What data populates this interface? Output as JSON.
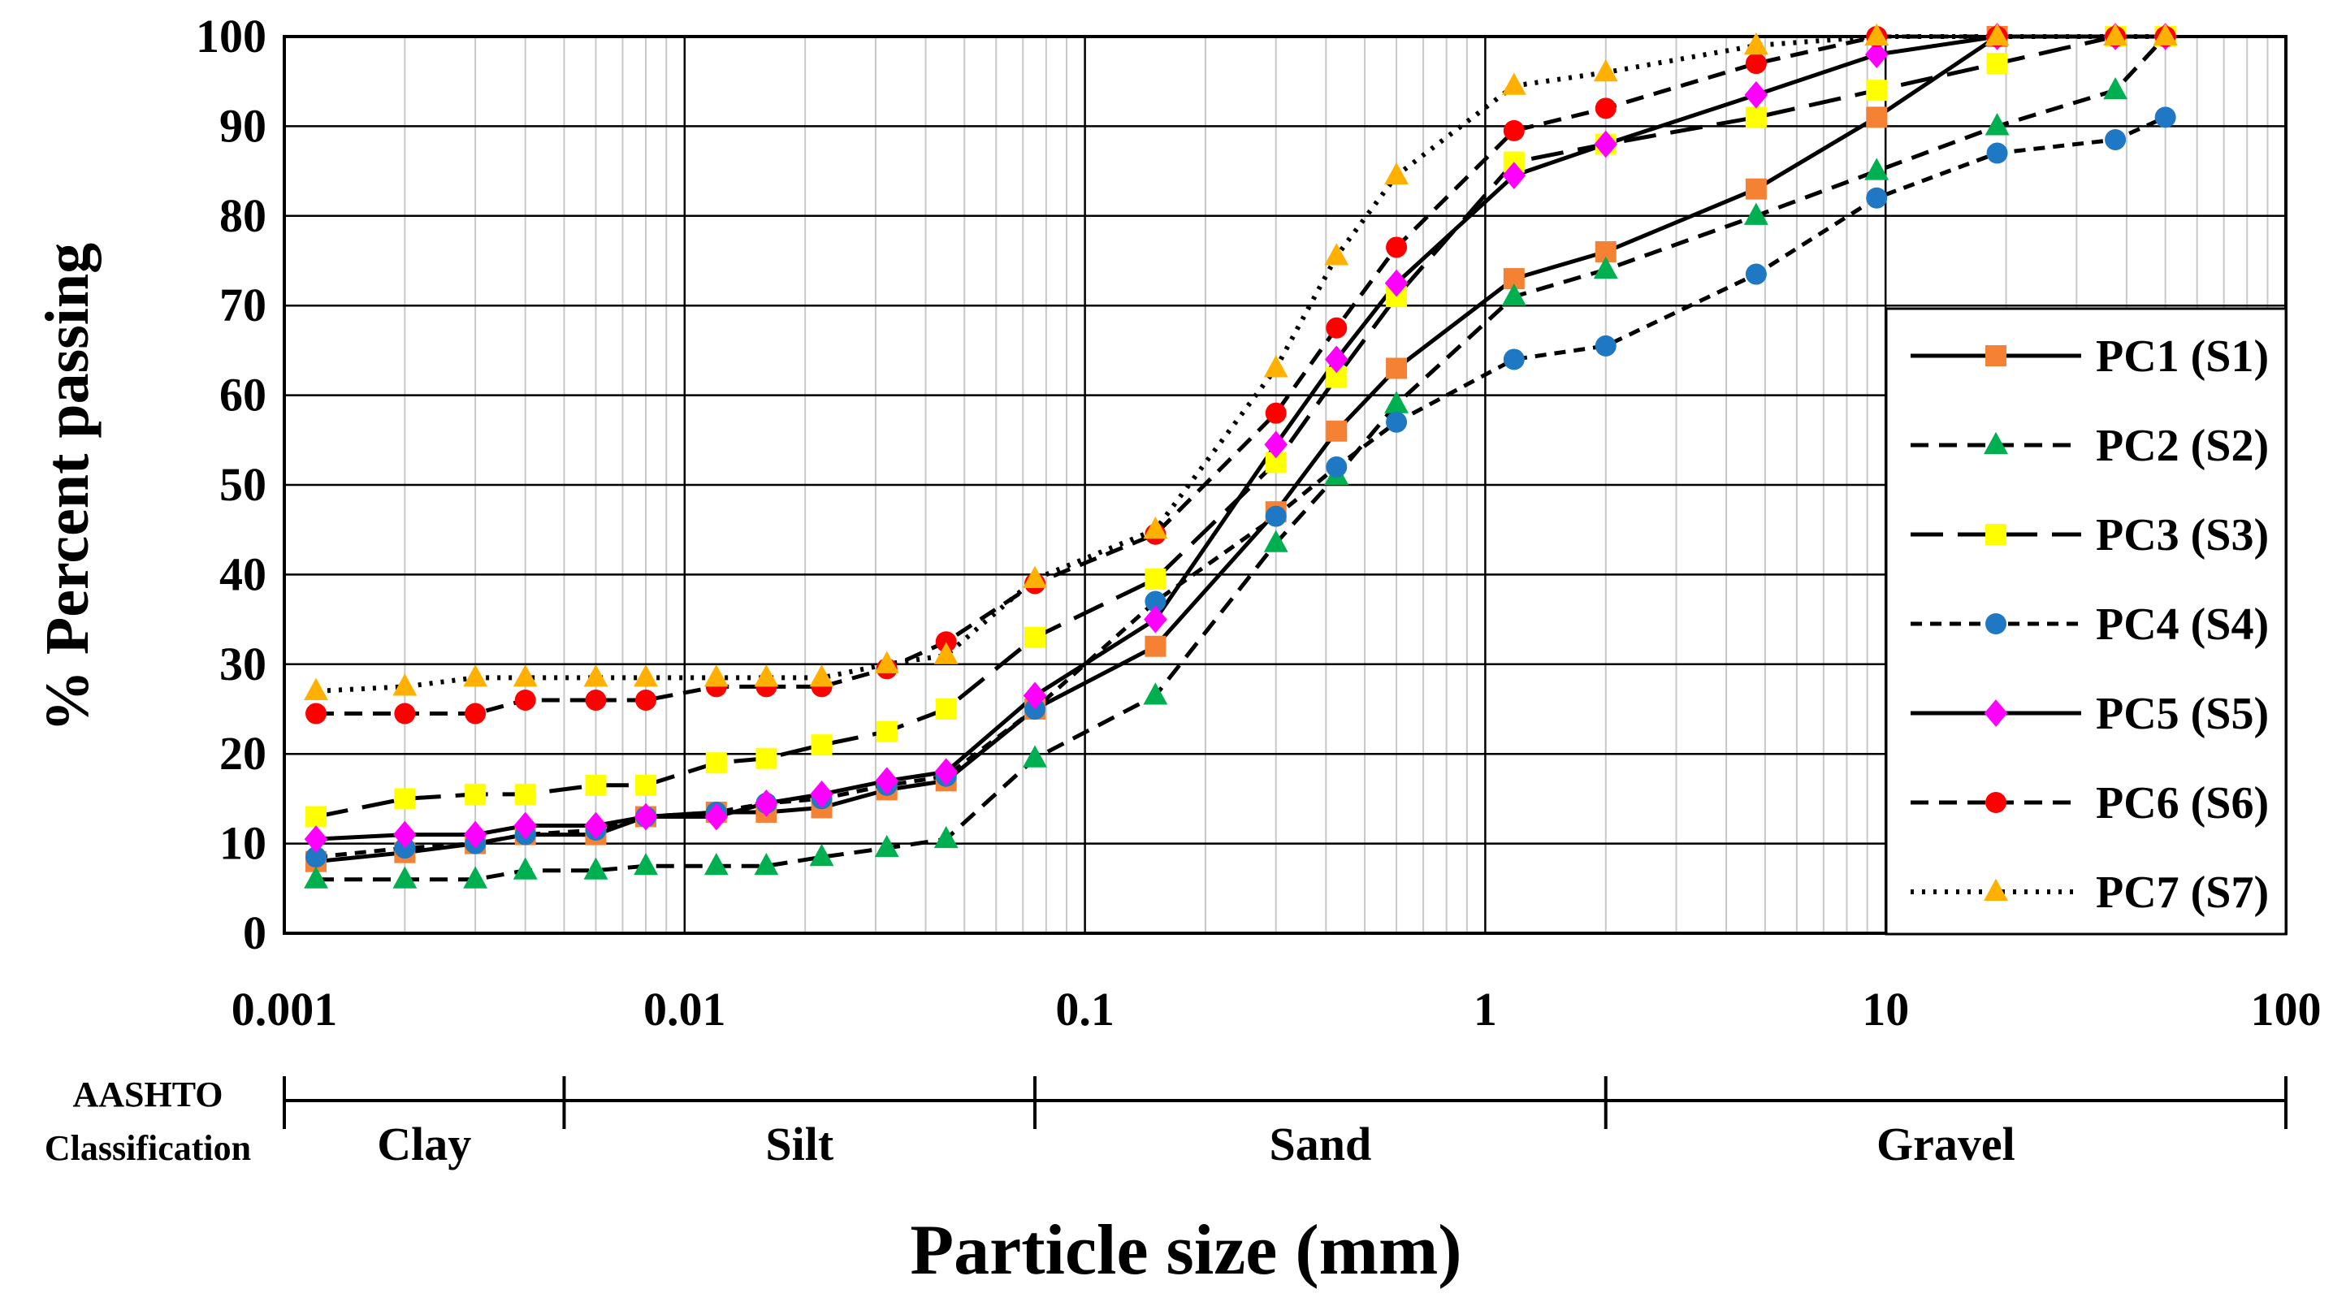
{
  "chart_data": {
    "type": "line",
    "title": "",
    "xlabel": "Particle size (mm)",
    "ylabel": "% Percent passing",
    "x_scale": "log",
    "xlim": [
      0.001,
      100
    ],
    "ylim": [
      0,
      100
    ],
    "x_ticks": [
      "0.001",
      "0.01",
      "0.1",
      "1",
      "10",
      "100"
    ],
    "y_ticks": [
      "0",
      "10",
      "20",
      "30",
      "40",
      "50",
      "60",
      "70",
      "80",
      "90",
      "100"
    ],
    "grid": true,
    "legend_position": "right",
    "series": [
      {
        "name": "PC1 (S1)",
        "marker": "square",
        "color": "#F58234",
        "line": "solid",
        "x": [
          0.0012,
          0.002,
          0.003,
          0.004,
          0.006,
          0.008,
          0.012,
          0.016,
          0.022,
          0.032,
          0.045,
          0.075,
          0.15,
          0.3,
          0.425,
          0.6,
          1.18,
          2,
          4.75,
          9.5,
          19,
          37.5,
          50
        ],
        "y": [
          8,
          9,
          10,
          11,
          11,
          13,
          13.5,
          13.5,
          14,
          16,
          17,
          25,
          32,
          47,
          56,
          63,
          73,
          76,
          83,
          91,
          100,
          100,
          100
        ]
      },
      {
        "name": "PC2 (S2)",
        "marker": "triangle",
        "color": "#00B050",
        "line": "dash",
        "x": [
          0.0012,
          0.002,
          0.003,
          0.004,
          0.006,
          0.008,
          0.012,
          0.016,
          0.022,
          0.032,
          0.045,
          0.075,
          0.15,
          0.3,
          0.425,
          0.6,
          1.18,
          2,
          4.75,
          9.5,
          19,
          37.5,
          50
        ],
        "y": [
          6,
          6,
          6,
          7,
          7,
          7.5,
          7.5,
          7.5,
          8.5,
          9.5,
          10.5,
          19.5,
          26.5,
          43.5,
          51,
          59,
          71,
          74,
          80,
          85,
          90,
          94,
          100
        ]
      },
      {
        "name": "PC3 (S3)",
        "marker": "square",
        "color": "#FFFF00",
        "line": "longdash",
        "x": [
          0.0012,
          0.002,
          0.003,
          0.004,
          0.006,
          0.008,
          0.012,
          0.016,
          0.022,
          0.032,
          0.045,
          0.075,
          0.15,
          0.3,
          0.425,
          0.6,
          1.18,
          2,
          4.75,
          9.5,
          19,
          37.5,
          50
        ],
        "y": [
          13,
          15,
          15.5,
          15.5,
          16.5,
          16.5,
          19,
          19.5,
          21,
          22.5,
          25,
          33,
          39.5,
          52.5,
          62,
          71,
          86,
          88,
          91,
          94,
          97,
          100,
          100
        ]
      },
      {
        "name": "PC4 (S4)",
        "marker": "circle",
        "color": "#1F78C4",
        "line": "shortdash",
        "x": [
          0.0012,
          0.002,
          0.003,
          0.004,
          0.006,
          0.008,
          0.012,
          0.016,
          0.022,
          0.032,
          0.045,
          0.075,
          0.15,
          0.3,
          0.425,
          0.6,
          1.18,
          2,
          4.75,
          9.5,
          19,
          37.5,
          50
        ],
        "y": [
          8.5,
          9.5,
          10,
          11,
          11.5,
          13,
          13.5,
          14.5,
          15,
          16.5,
          17.5,
          25,
          37,
          46.5,
          52,
          57,
          64,
          65.5,
          73.5,
          82,
          87,
          88.5,
          91
        ]
      },
      {
        "name": "PC5 (S5)",
        "marker": "diamond",
        "color": "#FF00FF",
        "line": "solid",
        "x": [
          0.0012,
          0.002,
          0.003,
          0.004,
          0.006,
          0.008,
          0.012,
          0.016,
          0.022,
          0.032,
          0.045,
          0.075,
          0.15,
          0.3,
          0.425,
          0.6,
          1.18,
          2,
          4.75,
          9.5,
          19,
          37.5,
          50
        ],
        "y": [
          10.5,
          11,
          11,
          12,
          12,
          13,
          13,
          14.5,
          15.5,
          17,
          18,
          26.5,
          35,
          54.5,
          64,
          72.5,
          84.5,
          88,
          93.5,
          98,
          100,
          100,
          100
        ]
      },
      {
        "name": "PC6 (S6)",
        "marker": "circle",
        "color": "#FF0000",
        "line": "dash",
        "x": [
          0.0012,
          0.002,
          0.003,
          0.004,
          0.006,
          0.008,
          0.012,
          0.016,
          0.022,
          0.032,
          0.045,
          0.075,
          0.15,
          0.3,
          0.425,
          0.6,
          1.18,
          2,
          4.75,
          9.5,
          19,
          37.5,
          50
        ],
        "y": [
          24.5,
          24.5,
          24.5,
          26,
          26,
          26,
          27.5,
          27.5,
          27.5,
          29.5,
          32.5,
          39,
          44.5,
          58,
          67.5,
          76.5,
          89.5,
          92,
          97,
          100,
          100,
          100,
          100
        ]
      },
      {
        "name": "PC7 (S7)",
        "marker": "triangle",
        "color": "#FFB000",
        "line": "dot",
        "x": [
          0.0012,
          0.002,
          0.003,
          0.004,
          0.006,
          0.008,
          0.012,
          0.016,
          0.022,
          0.032,
          0.045,
          0.075,
          0.15,
          0.3,
          0.425,
          0.6,
          1.18,
          2,
          4.75,
          9.5,
          19,
          37.5,
          50
        ],
        "y": [
          27,
          27.5,
          28.5,
          28.5,
          28.5,
          28.5,
          28.5,
          28.5,
          28.5,
          30,
          31,
          39.5,
          45,
          63,
          75.5,
          84.5,
          94.5,
          96,
          99,
          100,
          100,
          100,
          100
        ]
      }
    ],
    "classification": {
      "label_line1": "AASHTO",
      "label_line2": "Classification",
      "boundaries": [
        0.001,
        0.005,
        0.075,
        2,
        100
      ],
      "zones": [
        "Clay",
        "Silt",
        "Sand",
        "Gravel"
      ]
    }
  }
}
